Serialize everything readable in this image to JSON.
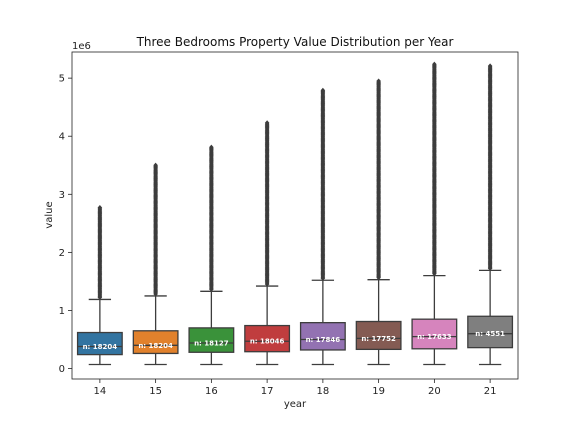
{
  "chart_data": {
    "type": "box",
    "title": "Three Bedrooms Property Value Distribution per Year",
    "xlabel": "year",
    "ylabel": "value",
    "y_scale_label": "1e6",
    "ylim": [
      -0.18,
      5.45
    ],
    "yticks": [
      0,
      1,
      2,
      3,
      4,
      5
    ],
    "grid": false,
    "categories": [
      "14",
      "15",
      "16",
      "17",
      "18",
      "19",
      "20",
      "21"
    ],
    "colors": [
      "#3274a1",
      "#e1812c",
      "#3a923a",
      "#c03d3e",
      "#9372b2",
      "#845b53",
      "#d684bd",
      "#7f7f7f"
    ],
    "boxes": [
      {
        "year": "14",
        "min": 0.07,
        "q1": 0.24,
        "median": 0.38,
        "q3": 0.62,
        "max": 1.19,
        "outlier_max": 2.77,
        "count_label": "n: 18204"
      },
      {
        "year": "15",
        "min": 0.07,
        "q1": 0.26,
        "median": 0.4,
        "q3": 0.65,
        "max": 1.25,
        "outlier_max": 3.5,
        "count_label": "n: 18204"
      },
      {
        "year": "16",
        "min": 0.07,
        "q1": 0.28,
        "median": 0.44,
        "q3": 0.7,
        "max": 1.33,
        "outlier_max": 3.81,
        "count_label": "n: 18127"
      },
      {
        "year": "17",
        "min": 0.07,
        "q1": 0.29,
        "median": 0.47,
        "q3": 0.74,
        "max": 1.42,
        "outlier_max": 4.23,
        "count_label": "n: 18046"
      },
      {
        "year": "18",
        "min": 0.07,
        "q1": 0.32,
        "median": 0.5,
        "q3": 0.79,
        "max": 1.52,
        "outlier_max": 4.79,
        "count_label": "n: 17846"
      },
      {
        "year": "19",
        "min": 0.07,
        "q1": 0.33,
        "median": 0.52,
        "q3": 0.81,
        "max": 1.53,
        "outlier_max": 4.95,
        "count_label": "n: 17752"
      },
      {
        "year": "20",
        "min": 0.07,
        "q1": 0.34,
        "median": 0.55,
        "q3": 0.85,
        "max": 1.6,
        "outlier_max": 5.24,
        "count_label": "n: 17633"
      },
      {
        "year": "21",
        "min": 0.07,
        "q1": 0.36,
        "median": 0.6,
        "q3": 0.9,
        "max": 1.69,
        "outlier_max": 5.21,
        "count_label": "n: 4551"
      }
    ]
  }
}
